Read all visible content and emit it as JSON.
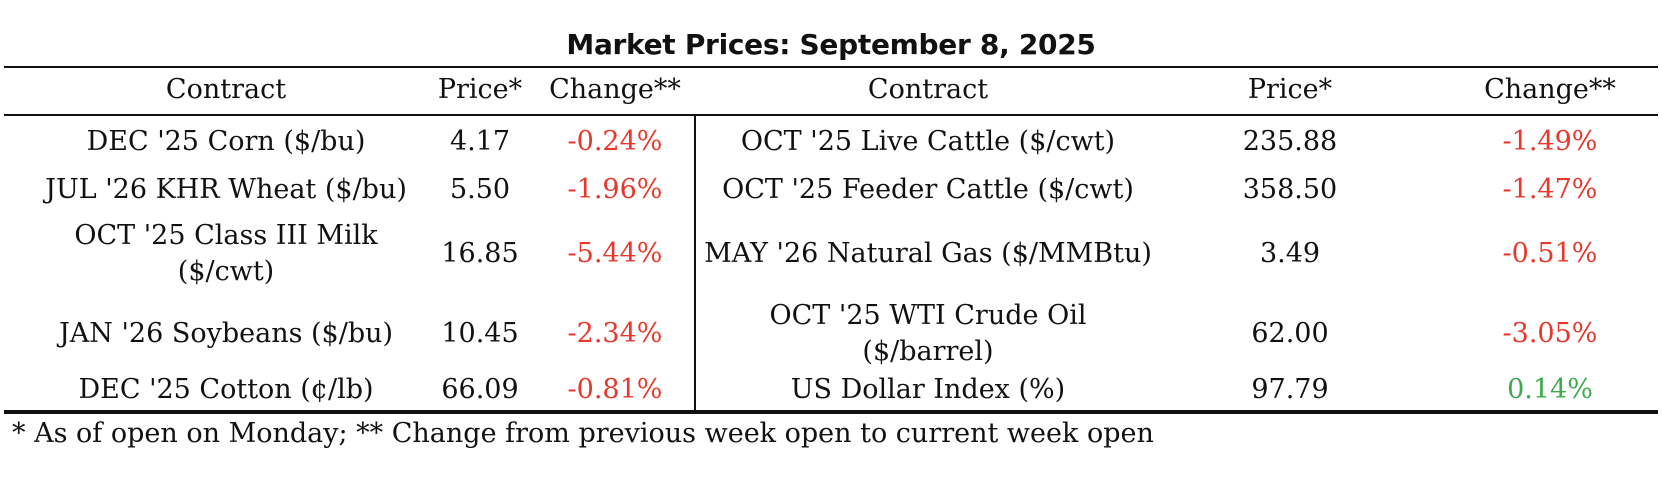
{
  "title": "Market Prices: September 8, 2025",
  "headers": {
    "left": {
      "contract": "Contract",
      "price": "Price*",
      "change": "Change**"
    },
    "right": {
      "contract": "Contract",
      "price": "Price*",
      "change": "Change**"
    }
  },
  "left_rows": [
    {
      "contract": "DEC '25 Corn ($/bu)",
      "price": "4.17",
      "change": "-0.24%"
    },
    {
      "contract": "JUL '26 KHR Wheat ($/bu)",
      "price": "5.50",
      "change": "-1.96%"
    },
    {
      "contract_line1": "OCT '25 Class III Milk",
      "contract_line2": "($/cwt)",
      "price": "16.85",
      "change": "-5.44%"
    },
    {
      "contract": "JAN '26 Soybeans ($/bu)",
      "price": "10.45",
      "change": "-2.34%"
    },
    {
      "contract": "DEC '25 Cotton (¢/lb)",
      "price": "66.09",
      "change": "-0.81%"
    }
  ],
  "right_rows": [
    {
      "contract": "OCT '25 Live Cattle ($/cwt)",
      "price": "235.88",
      "change": "-1.49%"
    },
    {
      "contract": "OCT '25 Feeder Cattle ($/cwt)",
      "price": "358.50",
      "change": "-1.47%"
    },
    {
      "contract": "MAY '26 Natural Gas ($/MMBtu)",
      "price": "3.49",
      "change": "-0.51%"
    },
    {
      "contract_line1": "OCT '25 WTI Crude Oil",
      "contract_line2": "($/barrel)",
      "price": "62.00",
      "change": "-3.05%"
    },
    {
      "contract": "US Dollar Index (%)",
      "price": "97.79",
      "change": "0.14%"
    }
  ],
  "footnote": "* As of open on Monday; ** Change from previous week open to current week open",
  "colors": {
    "negative": "#e8382b",
    "positive": "#3dab4b",
    "text": "#111111"
  }
}
